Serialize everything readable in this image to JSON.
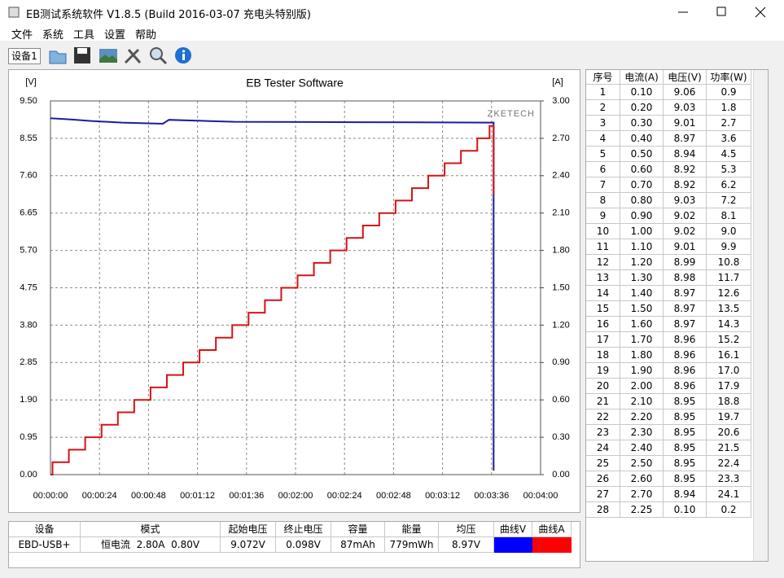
{
  "window": {
    "title": "EB测试系统软件 V1.8.5 (Build 2016-03-07 充电头特别版)"
  },
  "menu": [
    "文件",
    "系统",
    "工具",
    "设置",
    "帮助"
  ],
  "toolbar": {
    "device_tab": "设备1"
  },
  "chart_data": {
    "type": "line",
    "title": "EB Tester Software",
    "y_label": "[V]",
    "y2_label": "[A]",
    "annotation": "ZKETECH",
    "xlim": [
      0,
      240
    ],
    "xticks": [
      {
        "value": 0,
        "label": "00:00:00"
      },
      {
        "value": 24,
        "label": "00:00:24"
      },
      {
        "value": 48,
        "label": "00:00:48"
      },
      {
        "value": 72,
        "label": "00:01:12"
      },
      {
        "value": 96,
        "label": "00:01:36"
      },
      {
        "value": 120,
        "label": "00:02:00"
      },
      {
        "value": 144,
        "label": "00:02:24"
      },
      {
        "value": 168,
        "label": "00:02:48"
      },
      {
        "value": 192,
        "label": "00:03:12"
      },
      {
        "value": 216,
        "label": "00:03:36"
      },
      {
        "value": 240,
        "label": "00:04:00"
      }
    ],
    "ylim": [
      0,
      9.5
    ],
    "yticks": [
      {
        "value": 0,
        "label": "0.00"
      },
      0.95,
      {
        "value": 1.9,
        "label": "1.90"
      },
      2.85,
      {
        "value": 3.8,
        "label": "3.80"
      },
      {
        "value": 4.75,
        "label": "4.75"
      },
      {
        "value": 5.7,
        "label": "5.70"
      },
      6.65,
      {
        "value": 7.6,
        "label": "7.60"
      },
      8.55,
      {
        "value": 9.5,
        "label": "9.50"
      }
    ],
    "y2lim": [
      0,
      3
    ],
    "y2ticks": [
      {
        "value": 0,
        "label": "0.00"
      },
      {
        "value": 0.3,
        "label": "0.30"
      },
      {
        "value": 0.6,
        "label": "0.60"
      },
      {
        "value": 0.9,
        "label": "0.90"
      },
      {
        "value": 1.2,
        "label": "1.20"
      },
      {
        "value": 1.5,
        "label": "1.50"
      },
      {
        "value": 1.8,
        "label": "1.80"
      },
      {
        "value": 2.1,
        "label": "2.10"
      },
      {
        "value": 2.4,
        "label": "2.40"
      },
      {
        "value": 2.7,
        "label": "2.70"
      },
      {
        "value": 3,
        "label": "3.00"
      }
    ],
    "grid": true,
    "series": [
      {
        "color": "#1c1ca0",
        "x": [
          0,
          10,
          20,
          35,
          55,
          58,
          90,
          150,
          217,
          217
        ],
        "values": [
          9.06,
          9.03,
          8.99,
          8.95,
          8.92,
          9.02,
          8.97,
          8.96,
          8.95,
          0.1
        ]
      },
      {
        "color": "#d41414",
        "axis": "y2",
        "x": [
          0,
          1,
          1,
          9,
          9,
          17,
          17,
          25,
          25,
          33,
          33,
          41,
          41,
          49,
          49,
          57,
          57,
          65,
          65,
          73,
          73,
          81,
          81,
          89,
          89,
          97,
          97,
          105,
          105,
          113,
          113,
          121,
          121,
          129,
          129,
          137,
          137,
          145,
          145,
          153,
          153,
          161,
          161,
          169,
          169,
          177,
          177,
          185,
          185,
          193,
          193,
          201,
          201,
          209,
          209,
          215,
          215,
          217,
          217
        ],
        "values": [
          0,
          0,
          0.1,
          0.1,
          0.2,
          0.2,
          0.3,
          0.3,
          0.4,
          0.4,
          0.5,
          0.5,
          0.6,
          0.6,
          0.7,
          0.7,
          0.8,
          0.8,
          0.9,
          0.9,
          1.0,
          1.0,
          1.1,
          1.1,
          1.2,
          1.2,
          1.3,
          1.3,
          1.4,
          1.4,
          1.5,
          1.5,
          1.6,
          1.6,
          1.7,
          1.7,
          1.8,
          1.8,
          1.9,
          1.9,
          2.0,
          2.0,
          2.1,
          2.1,
          2.2,
          2.2,
          2.3,
          2.3,
          2.4,
          2.4,
          2.5,
          2.5,
          2.6,
          2.6,
          2.7,
          2.7,
          2.8,
          2.8,
          2.25
        ]
      }
    ]
  },
  "readings": {
    "columns": [
      "序号",
      "电流(A)",
      "电压(V)",
      "功率(W)"
    ],
    "rows": [
      [
        "1",
        "0.10",
        "9.06",
        "0.9"
      ],
      [
        "2",
        "0.20",
        "9.03",
        "1.8"
      ],
      [
        "3",
        "0.30",
        "9.01",
        "2.7"
      ],
      [
        "4",
        "0.40",
        "8.97",
        "3.6"
      ],
      [
        "5",
        "0.50",
        "8.94",
        "4.5"
      ],
      [
        "6",
        "0.60",
        "8.92",
        "5.3"
      ],
      [
        "7",
        "0.70",
        "8.92",
        "6.2"
      ],
      [
        "8",
        "0.80",
        "9.03",
        "7.2"
      ],
      [
        "9",
        "0.90",
        "9.02",
        "8.1"
      ],
      [
        "10",
        "1.00",
        "9.02",
        "9.0"
      ],
      [
        "11",
        "1.10",
        "9.01",
        "9.9"
      ],
      [
        "12",
        "1.20",
        "8.99",
        "10.8"
      ],
      [
        "13",
        "1.30",
        "8.98",
        "11.7"
      ],
      [
        "14",
        "1.40",
        "8.97",
        "12.6"
      ],
      [
        "15",
        "1.50",
        "8.97",
        "13.5"
      ],
      [
        "16",
        "1.60",
        "8.97",
        "14.3"
      ],
      [
        "17",
        "1.70",
        "8.96",
        "15.2"
      ],
      [
        "18",
        "1.80",
        "8.96",
        "16.1"
      ],
      [
        "19",
        "1.90",
        "8.96",
        "17.0"
      ],
      [
        "20",
        "2.00",
        "8.96",
        "17.9"
      ],
      [
        "21",
        "2.10",
        "8.95",
        "18.8"
      ],
      [
        "22",
        "2.20",
        "8.95",
        "19.7"
      ],
      [
        "23",
        "2.30",
        "8.95",
        "20.6"
      ],
      [
        "24",
        "2.40",
        "8.95",
        "21.5"
      ],
      [
        "25",
        "2.50",
        "8.95",
        "22.4"
      ],
      [
        "26",
        "2.60",
        "8.95",
        "23.3"
      ],
      [
        "27",
        "2.70",
        "8.94",
        "24.1"
      ],
      [
        "28",
        "2.25",
        "0.10",
        "0.2"
      ]
    ]
  },
  "summary": {
    "columns": [
      "设备",
      "模式",
      "起始电压",
      "终止电压",
      "容量",
      "能量",
      "均压",
      "曲线V",
      "曲线A"
    ],
    "row": [
      "EBD-USB+",
      "恒电流  2.80A  0.80V",
      "9.072V",
      "0.098V",
      "87mAh",
      "779mWh",
      "8.97V"
    ],
    "curve_colors": [
      "#0000ff",
      "#ff0000"
    ]
  }
}
